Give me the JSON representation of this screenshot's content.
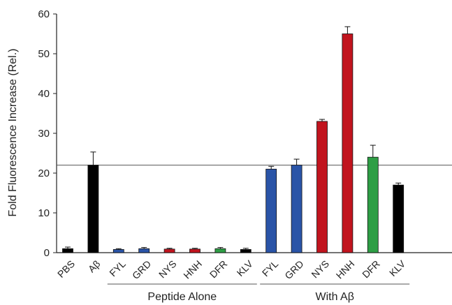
{
  "chart_data": {
    "type": "bar",
    "ylabel": "Fold Fluorescence Increase (Rel.)",
    "ylim": [
      0,
      60
    ],
    "yticks": [
      0,
      10,
      20,
      30,
      40,
      50,
      60
    ],
    "reference_line": 22,
    "bars": [
      {
        "label": "PBS",
        "value": 1.0,
        "error": 0.4,
        "color": "#000000"
      },
      {
        "label": "Aβ",
        "value": 22.0,
        "error": 3.3,
        "color": "#000000"
      },
      {
        "label": "FYL",
        "value": 0.8,
        "error": 0.2,
        "color": "#2a54a7"
      },
      {
        "label": "GRD",
        "value": 1.0,
        "error": 0.3,
        "color": "#2a54a7"
      },
      {
        "label": "NYS",
        "value": 0.9,
        "error": 0.2,
        "color": "#c1141e"
      },
      {
        "label": "HNH",
        "value": 0.9,
        "error": 0.2,
        "color": "#c1141e"
      },
      {
        "label": "DFR",
        "value": 1.0,
        "error": 0.3,
        "color": "#2e9e45"
      },
      {
        "label": "KLV",
        "value": 0.8,
        "error": 0.3,
        "color": "#000000"
      },
      {
        "label": "FYL",
        "value": 21.0,
        "error": 0.7,
        "color": "#2a54a7"
      },
      {
        "label": "GRD",
        "value": 22.0,
        "error": 1.5,
        "color": "#2a54a7"
      },
      {
        "label": "NYS",
        "value": 33.0,
        "error": 0.5,
        "color": "#c1141e"
      },
      {
        "label": "HNH",
        "value": 55.0,
        "error": 1.8,
        "color": "#c1141e"
      },
      {
        "label": "DFR",
        "value": 24.0,
        "error": 3.0,
        "color": "#2e9e45"
      },
      {
        "label": "KLV",
        "value": 17.0,
        "error": 0.5,
        "color": "#000000"
      }
    ],
    "groups": [
      {
        "label": "Peptide Alone",
        "from": 2,
        "to": 7
      },
      {
        "label": "With Aβ",
        "from": 8,
        "to": 13
      }
    ]
  }
}
